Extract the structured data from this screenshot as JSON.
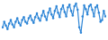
{
  "chart_data": {
    "type": "line",
    "color": "#2f86d6",
    "marker": "circle",
    "line_style": "solid",
    "values": [
      30,
      45,
      35,
      25,
      40,
      50,
      38,
      30,
      45,
      55,
      42,
      35,
      50,
      58,
      45,
      40,
      55,
      62,
      50,
      42,
      58,
      68,
      55,
      48,
      62,
      75,
      60,
      50,
      70,
      82,
      65,
      55,
      75,
      88,
      70,
      58,
      80,
      90,
      72,
      60,
      85,
      92,
      75,
      62,
      88,
      95,
      78,
      30,
      15,
      60,
      90,
      80,
      65,
      88,
      92,
      78,
      60,
      85,
      90,
      70,
      45,
      50,
      75,
      60
    ],
    "ylim": [
      0,
      100
    ],
    "grid": false,
    "tick_labels": false
  }
}
